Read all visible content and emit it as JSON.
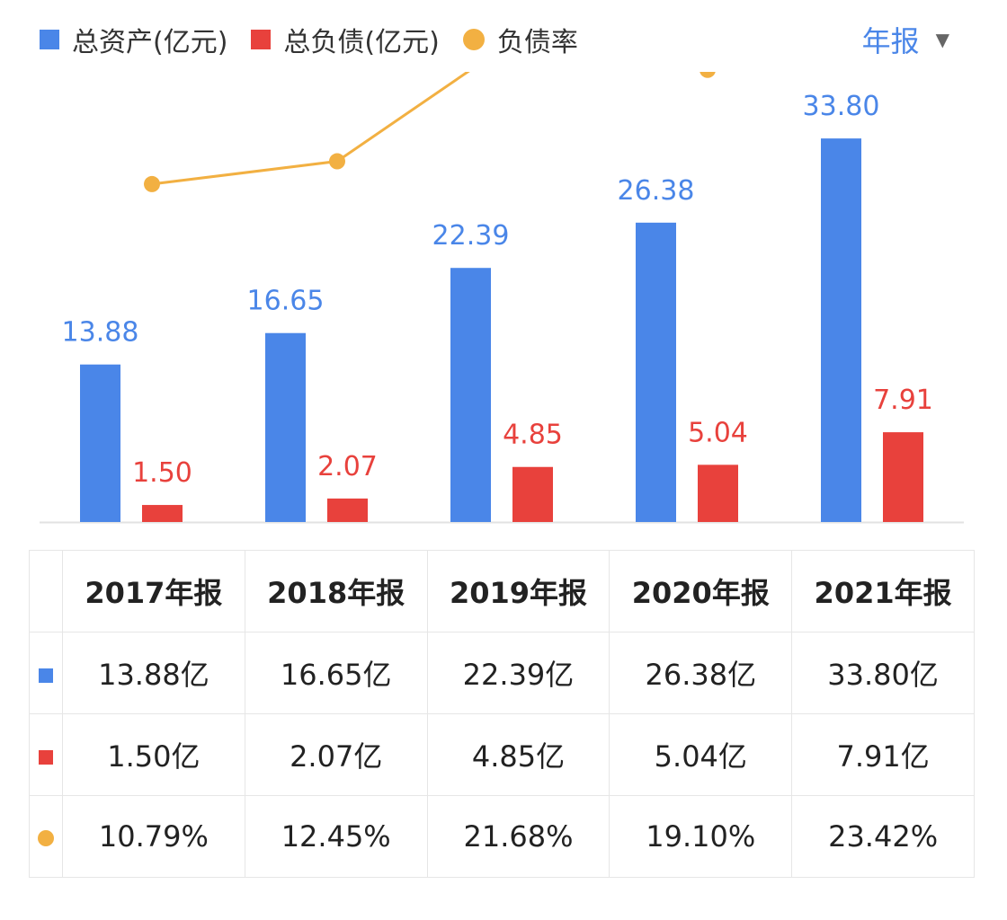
{
  "legend": {
    "assets": "总资产(亿元)",
    "liabilities": "总负债(亿元)",
    "ratio": "负债率"
  },
  "period_selector": {
    "label": "年报"
  },
  "colors": {
    "assets": "#4a86e8",
    "liabilities": "#e8413c",
    "ratio": "#f2b042",
    "period": "#4a86e8"
  },
  "chart_data": {
    "type": "bar",
    "categories": [
      "2017年报",
      "2018年报",
      "2019年报",
      "2020年报",
      "2021年报"
    ],
    "series": [
      {
        "name": "总资产(亿元)",
        "type": "bar",
        "values": [
          13.88,
          16.65,
          22.39,
          26.38,
          33.8
        ],
        "labels": [
          "13.88",
          "16.65",
          "22.39",
          "26.38",
          "33.80"
        ]
      },
      {
        "name": "总负债(亿元)",
        "type": "bar",
        "values": [
          1.5,
          2.07,
          4.85,
          5.04,
          7.91
        ],
        "labels": [
          "1.50",
          "2.07",
          "4.85",
          "5.04",
          "7.91"
        ]
      },
      {
        "name": "负债率",
        "type": "line",
        "unit": "%",
        "values": [
          10.79,
          12.45,
          21.68,
          19.1,
          23.42
        ]
      }
    ],
    "grid": false,
    "legend_position": "top-left"
  },
  "table": {
    "headers": [
      "2017年报",
      "2018年报",
      "2019年报",
      "2020年报",
      "2021年报"
    ],
    "rows": [
      [
        "13.88亿",
        "16.65亿",
        "22.39亿",
        "26.38亿",
        "33.80亿"
      ],
      [
        "1.50亿",
        "2.07亿",
        "4.85亿",
        "5.04亿",
        "7.91亿"
      ],
      [
        "10.79%",
        "12.45%",
        "21.68%",
        "19.10%",
        "23.42%"
      ]
    ]
  }
}
